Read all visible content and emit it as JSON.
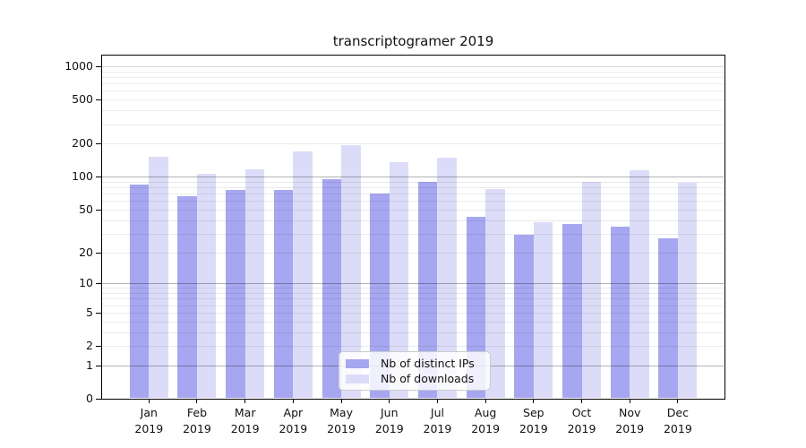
{
  "chart_data": {
    "type": "bar",
    "title": "transcriptogramer 2019",
    "categories": [
      "Jan",
      "Feb",
      "Mar",
      "Apr",
      "May",
      "Jun",
      "Jul",
      "Aug",
      "Sep",
      "Oct",
      "Nov",
      "Dec"
    ],
    "year_label": "2019",
    "series": [
      {
        "name": "Nb of distinct IPs",
        "color": "#a6a6f1",
        "values": [
          85,
          66,
          76,
          75,
          95,
          70,
          90,
          43,
          29,
          37,
          35,
          27
        ]
      },
      {
        "name": "Nb of downloads",
        "color": "#dcdcf9",
        "values": [
          153,
          107,
          117,
          170,
          192,
          135,
          148,
          77,
          38,
          89,
          114,
          88
        ]
      }
    ],
    "xlabel": "",
    "ylabel": "",
    "yscale": "symlog (log1p)",
    "ytick_labels": [
      0,
      1,
      2,
      5,
      10,
      20,
      50,
      100,
      200,
      500,
      1000
    ],
    "ylim": [
      0,
      1200
    ],
    "grid": true,
    "legend": {
      "position": "inside bottom-center",
      "items": [
        "Nb of distinct IPs",
        "Nb of downloads"
      ]
    }
  }
}
